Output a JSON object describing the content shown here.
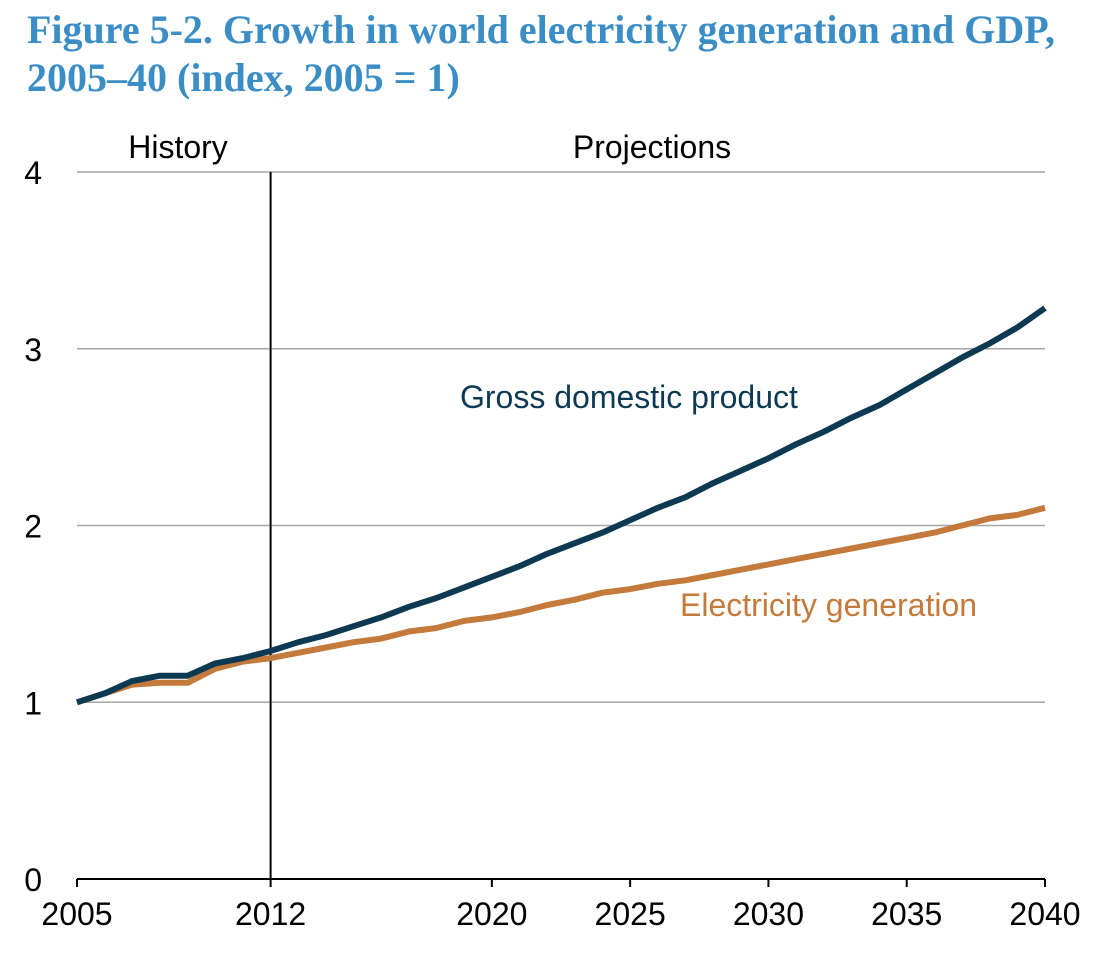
{
  "title": "Figure 5-2. Growth in world electricity generation and GDP, 2005–40 (index, 2005 = 1)",
  "chart_data": {
    "type": "line",
    "title": "Figure 5-2. Growth in world electricity generation and GDP, 2005–40 (index, 2005 = 1)",
    "xlabel": "",
    "ylabel": "",
    "xlim": [
      2005,
      2040
    ],
    "ylim": [
      0,
      4
    ],
    "grid": "horizontal",
    "x_ticks": [
      2005,
      2012,
      2020,
      2025,
      2030,
      2035,
      2040
    ],
    "y_ticks": [
      0,
      1,
      2,
      3,
      4
    ],
    "divider": {
      "x": 2012,
      "left_label": "History",
      "right_label": "Projections"
    },
    "x": [
      2005,
      2006,
      2007,
      2008,
      2009,
      2010,
      2011,
      2012,
      2013,
      2014,
      2015,
      2016,
      2017,
      2018,
      2019,
      2020,
      2021,
      2022,
      2023,
      2024,
      2025,
      2026,
      2027,
      2028,
      2029,
      2030,
      2031,
      2032,
      2033,
      2034,
      2035,
      2036,
      2037,
      2038,
      2039,
      2040
    ],
    "series": [
      {
        "name": "Gross domestic product",
        "color": "#0d3a52",
        "values": [
          1.0,
          1.05,
          1.12,
          1.15,
          1.15,
          1.22,
          1.25,
          1.29,
          1.34,
          1.38,
          1.43,
          1.48,
          1.54,
          1.59,
          1.65,
          1.71,
          1.77,
          1.84,
          1.9,
          1.96,
          2.03,
          2.1,
          2.16,
          2.24,
          2.31,
          2.38,
          2.46,
          2.53,
          2.61,
          2.68,
          2.77,
          2.86,
          2.95,
          3.03,
          3.12,
          3.23
        ]
      },
      {
        "name": "Electricity generation",
        "color": "#c47a3a",
        "values": [
          1.0,
          1.05,
          1.1,
          1.11,
          1.11,
          1.19,
          1.23,
          1.25,
          1.28,
          1.31,
          1.34,
          1.36,
          1.4,
          1.42,
          1.46,
          1.48,
          1.51,
          1.55,
          1.58,
          1.62,
          1.64,
          1.67,
          1.69,
          1.72,
          1.75,
          1.78,
          1.81,
          1.84,
          1.87,
          1.9,
          1.93,
          1.96,
          2.0,
          2.04,
          2.06,
          2.1
        ]
      }
    ]
  }
}
